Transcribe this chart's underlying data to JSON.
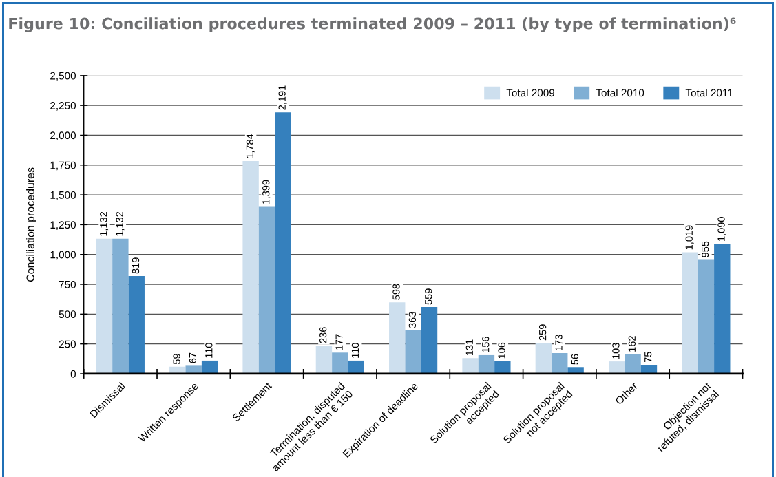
{
  "chart_data": {
    "type": "bar",
    "title": "Figure 10: Conciliation procedures terminated 2009 – 2011 (by type of termination)⁶",
    "ylabel": "Conciliation procedures",
    "categories": [
      "Dismissal",
      "Written response",
      "Settlement",
      "Termination, disputed\namount less than € 150",
      "Expiration of deadline",
      "Solution proposal\naccepted",
      "Solution proposal\nnot accepted",
      "Other",
      "Objection not\nrefuted, dismissal"
    ],
    "series": [
      {
        "name": "Total 2009",
        "color": "#cddfee",
        "values": [
          1132,
          59,
          1784,
          236,
          598,
          131,
          259,
          103,
          1019
        ],
        "value_labels": [
          "1,132",
          "59",
          "1,784",
          "236",
          "598",
          "131",
          "259",
          "103",
          "1,019"
        ]
      },
      {
        "name": "Total 2010",
        "color": "#80afd4",
        "values": [
          1132,
          67,
          1399,
          177,
          363,
          156,
          173,
          162,
          955
        ],
        "value_labels": [
          "1,132",
          "67",
          "1,399",
          "177",
          "363",
          "156",
          "173",
          "162",
          "955"
        ]
      },
      {
        "name": "Total 2011",
        "color": "#3580bd",
        "values": [
          819,
          110,
          2191,
          110,
          559,
          106,
          56,
          75,
          1090
        ],
        "value_labels": [
          "819",
          "110",
          "2,191",
          "110",
          "559",
          "106",
          "56",
          "75",
          "1,090"
        ]
      }
    ],
    "ylim": [
      0,
      2500
    ],
    "yticks": [
      0,
      250,
      500,
      750,
      {
        "value": 1000,
        "label": "1,000"
      },
      {
        "value": 1250,
        "label": "1,250"
      },
      {
        "value": 1500,
        "label": "1,500"
      },
      {
        "value": 1750,
        "label": "1,750"
      },
      {
        "value": 2000,
        "label": "2,000"
      },
      {
        "value": 2250,
        "label": "2,250"
      },
      {
        "value": 2500,
        "label": "2,500"
      }
    ],
    "grid": "y",
    "legend": "top right"
  }
}
